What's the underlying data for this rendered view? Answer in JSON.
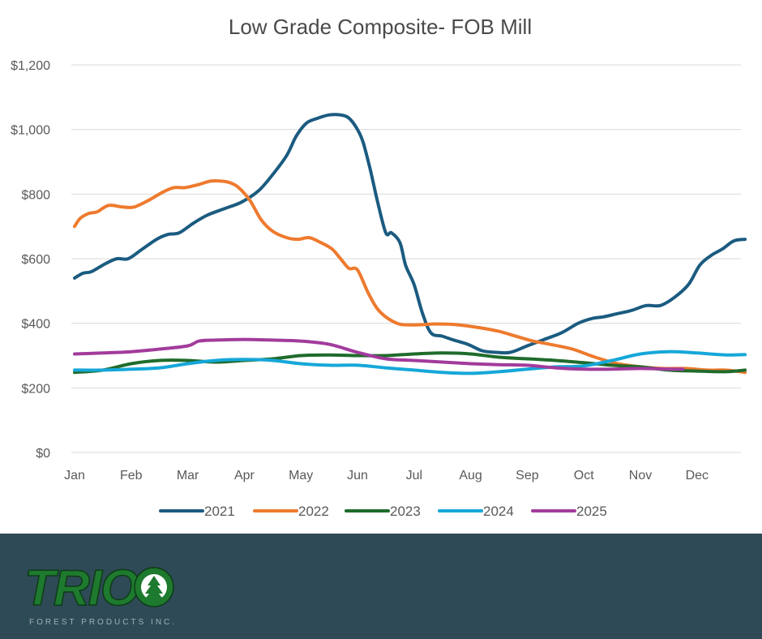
{
  "chart_data": {
    "type": "line",
    "title": "Low Grade Composite- FOB Mill",
    "xlabel": "",
    "ylabel": "",
    "categories": [
      "Jan",
      "Feb",
      "Mar",
      "Apr",
      "May",
      "Jun",
      "Jul",
      "Aug",
      "Sep",
      "Oct",
      "Nov",
      "Dec"
    ],
    "ylim": [
      0,
      1200
    ],
    "y_ticks": [
      0,
      200,
      400,
      600,
      800,
      1000,
      1200
    ],
    "y_tick_labels": [
      "$0",
      "$200",
      "$400",
      "$600",
      "$800",
      "$1,000",
      "$1,200"
    ],
    "grid": true,
    "legend_position": "bottom",
    "series": [
      {
        "name": "2021",
        "color": "#1b5b80",
        "x": [
          0,
          0.15,
          0.3,
          0.55,
          0.75,
          0.95,
          1.2,
          1.45,
          1.65,
          1.85,
          2.1,
          2.35,
          2.65,
          2.95,
          3.25,
          3.5,
          3.75,
          3.92,
          4.1,
          4.3,
          4.5,
          4.7,
          4.85,
          5.0,
          5.1,
          5.22,
          5.35,
          5.5,
          5.6,
          5.75,
          5.85,
          6.0,
          6.15,
          6.3,
          6.5,
          6.7,
          6.95,
          7.2,
          7.45,
          7.7,
          8.0,
          8.3,
          8.6,
          8.9,
          9.15,
          9.35,
          9.6,
          9.85,
          10.1,
          10.35,
          10.6,
          10.85,
          11.05,
          11.25,
          11.45,
          11.65,
          11.85
        ],
        "values": [
          540,
          555,
          560,
          585,
          600,
          600,
          630,
          660,
          675,
          680,
          710,
          735,
          755,
          775,
          810,
          860,
          920,
          980,
          1020,
          1035,
          1045,
          1045,
          1035,
          1000,
          960,
          880,
          780,
          680,
          680,
          650,
          580,
          520,
          430,
          370,
          360,
          348,
          335,
          315,
          310,
          310,
          330,
          350,
          370,
          400,
          415,
          420,
          430,
          440,
          455,
          455,
          480,
          520,
          580,
          610,
          630,
          655,
          660
        ]
      },
      {
        "name": "2022",
        "color": "#ee7a2e",
        "x": [
          0,
          0.1,
          0.25,
          0.4,
          0.6,
          0.85,
          1.05,
          1.3,
          1.55,
          1.75,
          1.95,
          2.2,
          2.4,
          2.6,
          2.75,
          2.9,
          3.1,
          3.3,
          3.5,
          3.75,
          3.95,
          4.15,
          4.35,
          4.55,
          4.7,
          4.85,
          5.0,
          5.2,
          5.4,
          5.7,
          6.0,
          6.4,
          6.8,
          7.2,
          7.5,
          7.8,
          8.1,
          8.4,
          8.8,
          9.2,
          9.6,
          10.0,
          10.4,
          10.8,
          11.2,
          11.5,
          11.85
        ],
        "values": [
          700,
          725,
          740,
          745,
          765,
          760,
          760,
          780,
          805,
          820,
          820,
          830,
          840,
          840,
          835,
          820,
          780,
          720,
          685,
          665,
          660,
          665,
          650,
          630,
          600,
          570,
          565,
          490,
          435,
          400,
          395,
          398,
          395,
          385,
          375,
          360,
          345,
          335,
          320,
          295,
          275,
          265,
          260,
          260,
          255,
          255,
          248
        ]
      },
      {
        "name": "2023",
        "color": "#1f6b2b",
        "x": [
          0,
          0.5,
          1.0,
          1.5,
          2.0,
          2.5,
          3.0,
          3.5,
          4.0,
          4.5,
          5.0,
          5.5,
          6.0,
          6.5,
          7.0,
          7.5,
          8.0,
          8.5,
          9.0,
          9.5,
          10.0,
          10.5,
          11.0,
          11.5,
          11.85
        ],
        "values": [
          248,
          255,
          275,
          285,
          285,
          280,
          285,
          290,
          300,
          302,
          300,
          300,
          305,
          308,
          305,
          295,
          290,
          285,
          278,
          270,
          265,
          255,
          252,
          250,
          255
        ]
      },
      {
        "name": "2024",
        "color": "#16a7d8",
        "x": [
          0,
          0.5,
          1.0,
          1.5,
          2.0,
          2.5,
          3.0,
          3.5,
          4.0,
          4.5,
          5.0,
          5.5,
          6.0,
          6.5,
          7.0,
          7.5,
          8.0,
          8.5,
          9.0,
          9.5,
          10.0,
          10.5,
          11.0,
          11.5,
          11.85
        ],
        "values": [
          255,
          255,
          258,
          262,
          275,
          285,
          288,
          285,
          275,
          270,
          270,
          262,
          255,
          248,
          245,
          250,
          258,
          265,
          268,
          285,
          305,
          312,
          308,
          302,
          303
        ]
      },
      {
        "name": "2025",
        "color": "#a23b9c",
        "x": [
          0,
          0.5,
          1.0,
          1.5,
          2.0,
          2.2,
          2.5,
          3.0,
          3.5,
          4.0,
          4.5,
          5.0,
          5.5,
          6.0,
          6.5,
          7.0,
          7.5,
          8.0,
          8.5,
          9.0,
          9.5,
          10.0,
          10.5,
          10.75
        ],
        "values": [
          305,
          308,
          312,
          320,
          330,
          345,
          348,
          350,
          348,
          345,
          335,
          310,
          290,
          285,
          280,
          275,
          272,
          270,
          262,
          258,
          258,
          260,
          258,
          258
        ]
      }
    ]
  },
  "brand": {
    "name": "TRIO",
    "tagline": "FOREST PRODUCTS INC.",
    "footer_color": "#2e4a56",
    "logo_green": "#1e7a2e"
  }
}
